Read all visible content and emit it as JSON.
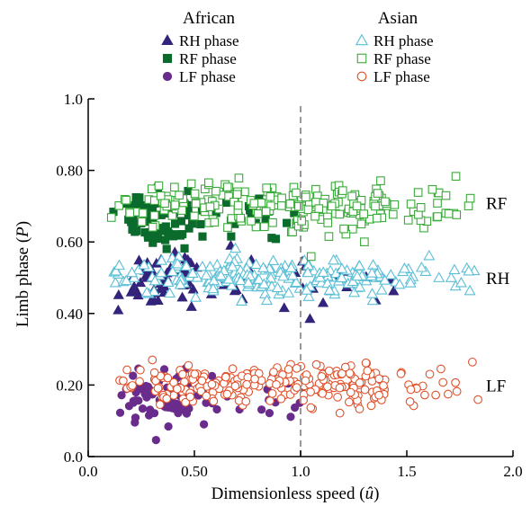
{
  "chart_data": {
    "type": "scatter",
    "xlabel_prefix": "Dimensionless speed (",
    "xlabel_var": "û",
    "xlabel_suffix": ")",
    "ylabel_prefix": "Limb phase (",
    "ylabel_var": "P",
    "ylabel_suffix": ")",
    "xlim": [
      0,
      2.0
    ],
    "ylim": [
      0,
      1.0
    ],
    "x_ticks": [
      0,
      0.5,
      1.0,
      1.5,
      2.0
    ],
    "x_tick_labels": [
      "0.0",
      "0.50",
      "1.0",
      "1.5",
      "2.0"
    ],
    "y_ticks": [
      0,
      0.2,
      0.4,
      0.6,
      0.8,
      1.0
    ],
    "y_tick_labels": [
      "0.0",
      "0.20",
      "0.40",
      "0.60",
      "0.80",
      "1.0"
    ],
    "reference_line": {
      "x": 1.0,
      "style": "dashed",
      "color": "#999999"
    },
    "legend_groups": [
      {
        "title": "African",
        "entries": [
          "RH phase",
          "RF phase",
          "LF phase"
        ]
      },
      {
        "title": "Asian",
        "entries": [
          "RH phase",
          "RF phase",
          "LF phase"
        ]
      }
    ],
    "band_labels": [
      {
        "text": "RF",
        "y": 0.71
      },
      {
        "text": "RH",
        "y": 0.5
      },
      {
        "text": "LF",
        "y": 0.2
      }
    ],
    "colors": {
      "african_rh": "#33237a",
      "african_rf": "#0b6b2c",
      "african_lf": "#6a2c8c",
      "asian_rh": "#5bbfd6",
      "asian_rf": "#3aaa3a",
      "asian_lf": "#e0502a"
    },
    "series": [
      {
        "name": "African RH phase",
        "group": "African",
        "limb": "RH",
        "marker": "triangle-filled",
        "color": "#33237a",
        "n": 90,
        "x_range": [
          0.1,
          1.45
        ],
        "x_focus": [
          0.2,
          0.5
        ],
        "y_center": 0.49,
        "y_spread": 0.04
      },
      {
        "name": "African RF phase",
        "group": "African",
        "limb": "RF",
        "marker": "square-filled",
        "color": "#0b6b2c",
        "n": 95,
        "x_range": [
          0.1,
          1.0
        ],
        "x_focus": [
          0.2,
          0.5
        ],
        "y_center": 0.665,
        "y_spread": 0.04
      },
      {
        "name": "African LF phase",
        "group": "African",
        "limb": "LF",
        "marker": "circle-filled",
        "color": "#6a2c8c",
        "n": 95,
        "x_range": [
          0.1,
          1.05
        ],
        "x_focus": [
          0.2,
          0.5
        ],
        "y_center": 0.165,
        "y_spread": 0.035
      },
      {
        "name": "Asian RH phase",
        "group": "Asian",
        "limb": "RH",
        "marker": "triangle-open",
        "color": "#5bbfd6",
        "n": 210,
        "x_range": [
          0.1,
          1.85
        ],
        "x_focus": [
          0.3,
          1.4
        ],
        "y_center": 0.5,
        "y_spread": 0.025
      },
      {
        "name": "Asian RF phase",
        "group": "Asian",
        "limb": "RF",
        "marker": "square-open",
        "color": "#3aaa3a",
        "n": 220,
        "x_range": [
          0.1,
          1.8
        ],
        "x_focus": [
          0.3,
          1.4
        ],
        "y_center": 0.7,
        "y_spread": 0.035
      },
      {
        "name": "Asian LF phase",
        "group": "Asian",
        "limb": "LF",
        "marker": "circle-open",
        "color": "#e0502a",
        "n": 240,
        "x_range": [
          0.1,
          1.85
        ],
        "x_focus": [
          0.3,
          1.4
        ],
        "y_center": 0.2,
        "y_spread": 0.03
      }
    ]
  }
}
